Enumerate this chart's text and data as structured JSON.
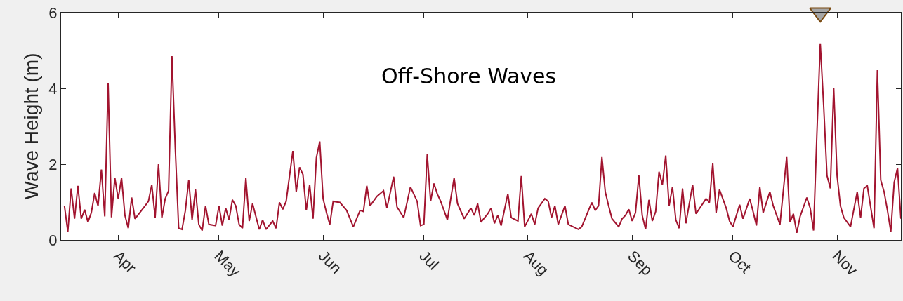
{
  "chart_data": {
    "type": "line",
    "title": "Off-Shore Waves",
    "ylabel": "Wave Height (m)",
    "x": [
      "--03-16",
      "--03-17",
      "--03-18",
      "--03-19",
      "--03-20",
      "--03-21",
      "--03-22",
      "--03-23",
      "--03-24",
      "--03-25",
      "--03-26",
      "--03-27",
      "--03-28",
      "--03-29",
      "--03-30",
      "--03-31",
      "--04-01",
      "--04-02",
      "--04-03",
      "--04-04",
      "--04-05",
      "--04-06",
      "--04-09",
      "--04-10",
      "--04-11",
      "--04-12",
      "--04-13",
      "--04-14",
      "--04-15",
      "--04-16",
      "--04-17",
      "--04-18",
      "--04-19",
      "--04-20",
      "--04-21",
      "--04-22",
      "--04-23",
      "--04-24",
      "--04-25",
      "--04-26",
      "--04-27",
      "--04-28",
      "--04-30",
      "--05-01",
      "--05-02",
      "--05-03",
      "--05-04",
      "--05-05",
      "--05-06",
      "--05-07",
      "--05-08",
      "--05-09",
      "--05-10",
      "--05-11",
      "--05-13",
      "--05-14",
      "--05-15",
      "--05-17",
      "--05-18",
      "--05-19",
      "--05-20",
      "--05-21",
      "--05-23",
      "--05-24",
      "--05-25",
      "--05-26",
      "--05-27",
      "--05-28",
      "--05-29",
      "--05-30",
      "--05-31",
      "--06-01",
      "--06-02",
      "--06-03",
      "--06-04",
      "--06-06",
      "--06-08",
      "--06-10",
      "--06-12",
      "--06-13",
      "--06-14",
      "--06-15",
      "--06-17",
      "--06-19",
      "--06-20",
      "--06-22",
      "--06-23",
      "--06-25",
      "--06-27",
      "--06-29",
      "--06-30",
      "--07-01",
      "--07-02",
      "--07-03",
      "--07-04",
      "--07-05",
      "--07-06",
      "--07-08",
      "--07-09",
      "--07-10",
      "--07-11",
      "--07-13",
      "--07-15",
      "--07-16",
      "--07-17",
      "--07-18",
      "--07-20",
      "--07-21",
      "--07-22",
      "--07-23",
      "--07-24",
      "--07-26",
      "--07-27",
      "--07-29",
      "--07-30",
      "--07-31",
      "--08-02",
      "--08-03",
      "--08-04",
      "--08-06",
      "--08-07",
      "--08-08",
      "--08-09",
      "--08-10",
      "--08-12",
      "--08-13",
      "--08-16",
      "--08-17",
      "--08-19",
      "--08-20",
      "--08-21",
      "--08-22",
      "--08-23",
      "--08-24",
      "--08-25",
      "--08-26",
      "--08-28",
      "--08-29",
      "--08-30",
      "--08-31",
      "--09-01",
      "--09-02",
      "--09-03",
      "--09-04",
      "--09-05",
      "--09-06",
      "--09-07",
      "--09-08",
      "--09-09",
      "--09-10",
      "--09-11",
      "--09-12",
      "--09-13",
      "--09-14",
      "--09-15",
      "--09-16",
      "--09-17",
      "--09-19",
      "--09-20",
      "--09-23",
      "--09-24",
      "--09-25",
      "--09-26",
      "--09-27",
      "--09-29",
      "--09-30",
      "--10-01",
      "--10-03",
      "--10-04",
      "--10-06",
      "--10-07",
      "--10-08",
      "--10-09",
      "--10-10",
      "--10-12",
      "--10-13",
      "--10-15",
      "--10-17",
      "--10-18",
      "--10-19",
      "--10-20",
      "--10-21",
      "--10-23",
      "--10-24",
      "--10-25",
      "--10-26",
      "--10-27",
      "--10-28",
      "--10-29",
      "--10-30",
      "--10-31",
      "--11-01",
      "--11-02",
      "--11-03",
      "--11-05",
      "--11-07",
      "--11-08",
      "--11-09",
      "--11-10",
      "--11-12",
      "--11-13",
      "--11-14",
      "--11-15",
      "--11-16",
      "--11-17",
      "--11-18",
      "--11-19",
      "--11-20"
    ],
    "series": [
      {
        "color": "#a2142f",
        "values": [
          0.9,
          0.22,
          1.36,
          0.56,
          1.43,
          0.56,
          0.8,
          0.47,
          0.72,
          1.24,
          0.9,
          1.86,
          0.62,
          4.14,
          0.6,
          1.64,
          1.09,
          1.64,
          0.65,
          0.31,
          1.12,
          0.56,
          0.9,
          1.02,
          1.46,
          0.59,
          2.0,
          0.59,
          1.09,
          1.3,
          4.85,
          2.4,
          0.31,
          0.28,
          0.78,
          1.58,
          0.53,
          1.33,
          0.41,
          0.25,
          0.9,
          0.41,
          0.38,
          0.9,
          0.38,
          0.84,
          0.53,
          1.06,
          0.9,
          0.41,
          0.31,
          1.64,
          0.5,
          0.96,
          0.28,
          0.53,
          0.28,
          0.5,
          0.31,
          0.99,
          0.81,
          1.02,
          2.35,
          1.27,
          1.92,
          1.73,
          0.78,
          1.46,
          0.56,
          2.17,
          2.6,
          1.09,
          0.72,
          0.41,
          1.02,
          0.99,
          0.78,
          0.35,
          0.78,
          0.75,
          1.43,
          0.9,
          1.15,
          1.3,
          0.84,
          1.67,
          0.87,
          0.59,
          1.4,
          1.02,
          0.38,
          0.41,
          2.26,
          1.02,
          1.49,
          1.21,
          1.02,
          0.53,
          1.09,
          1.64,
          0.96,
          0.56,
          0.84,
          0.65,
          0.96,
          0.47,
          0.69,
          0.84,
          0.44,
          0.65,
          0.38,
          1.22,
          0.59,
          0.5,
          1.69,
          0.35,
          0.69,
          0.41,
          0.84,
          1.09,
          1.02,
          0.59,
          0.9,
          0.41,
          0.9,
          0.41,
          0.28,
          0.35,
          0.78,
          0.99,
          0.78,
          0.9,
          2.19,
          1.27,
          0.9,
          0.56,
          0.35,
          0.56,
          0.65,
          0.81,
          0.5,
          0.72,
          1.7,
          0.65,
          0.28,
          1.06,
          0.5,
          0.75,
          1.8,
          1.46,
          2.23,
          0.9,
          1.4,
          0.53,
          0.31,
          1.36,
          0.44,
          1.46,
          0.69,
          1.09,
          0.99,
          2.02,
          0.72,
          1.33,
          0.84,
          0.5,
          0.35,
          0.93,
          0.56,
          1.09,
          0.75,
          0.38,
          1.4,
          0.72,
          1.27,
          0.9,
          0.41,
          2.19,
          0.47,
          0.69,
          0.19,
          0.62,
          1.12,
          0.84,
          0.25,
          2.81,
          5.19,
          3.56,
          1.7,
          1.36,
          4.02,
          1.7,
          0.9,
          0.59,
          0.35,
          1.27,
          0.59,
          1.36,
          1.43,
          0.31,
          4.48,
          1.58,
          1.27,
          0.78,
          0.22,
          1.52,
          1.9,
          0.56
        ]
      },
      {
        "type": "scatter",
        "marker": "triangle",
        "color": "#a6a6a6",
        "x": [
          "--10-27"
        ],
        "values": [
          6
        ]
      }
    ],
    "xlim": [
      "--03-15",
      "--11-20"
    ],
    "xticks": [
      {
        "value": "--04-01",
        "label": "Apr"
      },
      {
        "value": "--05-01",
        "label": "May"
      },
      {
        "value": "--06-01",
        "label": "Jun"
      },
      {
        "value": "--07-01",
        "label": "Jul"
      },
      {
        "value": "--08-01",
        "label": "Aug"
      },
      {
        "value": "--09-01",
        "label": "Sep"
      },
      {
        "value": "--10-01",
        "label": "Oct"
      },
      {
        "value": "--11-01",
        "label": "Nov"
      }
    ],
    "ylim": [
      0,
      6
    ],
    "yticks": [
      0,
      2,
      4,
      6
    ],
    "line_style": "solid",
    "marker": "none"
  }
}
